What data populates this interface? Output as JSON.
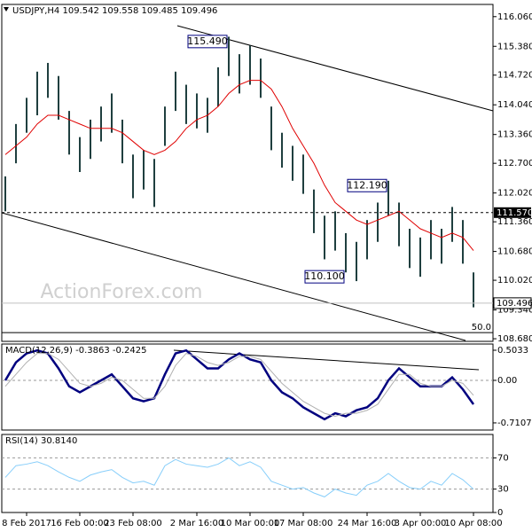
{
  "chart_data": [
    {
      "type": "ohlc",
      "title": "USDJPY,H4 109.542 109.558 109.485 109.496",
      "categories": [
        null,
        null,
        "8 Feb 2017",
        null,
        null,
        null,
        null,
        "16 Feb 00:00",
        null,
        null,
        null,
        null,
        "23 Feb 08:00",
        null,
        null,
        null,
        null,
        null,
        "2 Mar 16:00",
        null,
        null,
        null,
        null,
        "10 Mar 00:00",
        null,
        null,
        null,
        null,
        "17 Mar 08:00",
        null,
        null,
        null,
        null,
        null,
        "24 Mar 16:00",
        null,
        null,
        null,
        null,
        "3 Apr 00:00",
        null,
        null,
        null,
        null,
        "10 Apr 08:00"
      ],
      "high": [
        112.4,
        113.6,
        114.2,
        114.8,
        115.0,
        114.7,
        113.9,
        113.3,
        113.7,
        114.0,
        114.3,
        113.7,
        112.9,
        113.0,
        112.8,
        114.0,
        114.8,
        114.5,
        114.3,
        114.2,
        114.9,
        115.6,
        115.2,
        115.4,
        115.1,
        114.0,
        113.4,
        113.1,
        112.9,
        112.1,
        111.5,
        111.6,
        111.1,
        110.9,
        111.4,
        111.8,
        112.3,
        111.8,
        111.2,
        111.0,
        111.4,
        111.2,
        111.7,
        111.4,
        110.2
      ],
      "low": [
        111.6,
        112.7,
        113.4,
        113.8,
        114.2,
        113.7,
        112.9,
        112.5,
        112.8,
        113.2,
        113.4,
        112.7,
        111.9,
        112.1,
        111.7,
        113.1,
        113.9,
        113.6,
        113.5,
        113.4,
        114.0,
        114.7,
        114.3,
        114.5,
        114.2,
        113.0,
        112.6,
        112.3,
        112.0,
        111.1,
        110.5,
        110.7,
        110.2,
        110.0,
        110.5,
        110.9,
        111.5,
        110.8,
        110.3,
        110.1,
        110.5,
        110.4,
        110.9,
        110.4,
        109.4
      ],
      "color": "#1f3f3f",
      "series": [
        {
          "color": "#e00000",
          "values": [
            112.9,
            113.1,
            113.3,
            113.6,
            113.8,
            113.8,
            113.7,
            113.6,
            113.5,
            113.5,
            113.5,
            113.4,
            113.2,
            113.0,
            112.9,
            113.0,
            113.2,
            113.5,
            113.7,
            113.8,
            114.0,
            114.3,
            114.5,
            114.6,
            114.6,
            114.4,
            114.0,
            113.5,
            113.1,
            112.7,
            112.2,
            111.8,
            111.6,
            111.4,
            111.3,
            111.4,
            111.5,
            111.6,
            111.4,
            111.2,
            111.1,
            111.0,
            111.1,
            111.0,
            110.7
          ]
        }
      ],
      "ylim": [
        108.62,
        116.34
      ],
      "yticks": [
        {
          "value": 116.06,
          "label": "116.060"
        },
        {
          "value": 115.38,
          "label": "115.380"
        },
        {
          "value": 114.72,
          "label": "114.720"
        },
        {
          "value": 114.04,
          "label": "114.040"
        },
        {
          "value": 113.36,
          "label": "113.360"
        },
        {
          "value": 112.7,
          "label": "112.700"
        },
        {
          "value": 112.02,
          "label": "112.020"
        },
        {
          "value": 111.36,
          "label": "111.360"
        },
        {
          "value": 110.68,
          "label": "110.680"
        },
        {
          "value": 110.02,
          "label": "110.020"
        },
        {
          "value": 109.34,
          "label": "109.340"
        },
        {
          "value": 108.68,
          "label": "108.680"
        }
      ],
      "hline": {
        "value": 111.57,
        "label": "111.570"
      },
      "last": 109.496,
      "level": {
        "value": 108.82,
        "label": "50.0"
      },
      "annotations": [
        {
          "index": 19,
          "value": 115.49,
          "label": "115.490"
        },
        {
          "index": 34,
          "value": 112.19,
          "label": "112.190"
        },
        {
          "index": 30,
          "value": 110.1,
          "label": "110.100"
        }
      ],
      "watermark": "ActionForex.com"
    },
    {
      "type": "line",
      "title": "MACD(12,26,9) -0.3863 -0.2425",
      "series": [
        {
          "color": "#00007f",
          "width": 2.5,
          "values": [
            0.0,
            0.3,
            0.45,
            0.5,
            0.45,
            0.2,
            -0.1,
            -0.2,
            -0.1,
            0.0,
            0.1,
            -0.1,
            -0.3,
            -0.35,
            -0.3,
            0.1,
            0.45,
            0.5,
            0.35,
            0.2,
            0.2,
            0.35,
            0.45,
            0.35,
            0.3,
            0.0,
            -0.2,
            -0.3,
            -0.45,
            -0.55,
            -0.65,
            -0.55,
            -0.6,
            -0.5,
            -0.45,
            -0.3,
            0.0,
            0.2,
            0.05,
            -0.1,
            -0.1,
            -0.1,
            0.05,
            -0.15,
            -0.4
          ]
        },
        {
          "color": "#b0b0b0",
          "width": 1,
          "values": [
            -0.1,
            0.1,
            0.3,
            0.45,
            0.45,
            0.35,
            0.15,
            -0.05,
            -0.1,
            -0.05,
            0.05,
            0.0,
            -0.15,
            -0.3,
            -0.3,
            -0.1,
            0.25,
            0.45,
            0.4,
            0.3,
            0.25,
            0.3,
            0.4,
            0.4,
            0.35,
            0.15,
            -0.05,
            -0.2,
            -0.35,
            -0.45,
            -0.55,
            -0.6,
            -0.55,
            -0.55,
            -0.5,
            -0.4,
            -0.15,
            0.1,
            0.1,
            -0.05,
            -0.1,
            -0.1,
            0.0,
            -0.05,
            -0.25
          ]
        }
      ],
      "ylim": [
        -0.83,
        0.607
      ],
      "yticks": [
        0.5033,
        {
          "value": 0,
          "label": "0.00"
        },
        -0.7107
      ],
      "dashed": [
        0
      ]
    },
    {
      "type": "line",
      "title": "RSI(14) 30.8140",
      "series": [
        {
          "color": "#87cefa",
          "width": 1,
          "values": [
            45,
            60,
            62,
            65,
            60,
            52,
            45,
            40,
            48,
            52,
            55,
            45,
            38,
            40,
            35,
            60,
            68,
            62,
            60,
            58,
            62,
            70,
            60,
            65,
            58,
            40,
            35,
            30,
            32,
            25,
            20,
            30,
            25,
            22,
            35,
            40,
            50,
            40,
            32,
            30,
            40,
            35,
            50,
            42,
            30
          ]
        }
      ],
      "ylim": [
        0,
        100
      ],
      "yticks": [
        70,
        30,
        0
      ],
      "dashed": [
        70,
        30
      ]
    }
  ]
}
